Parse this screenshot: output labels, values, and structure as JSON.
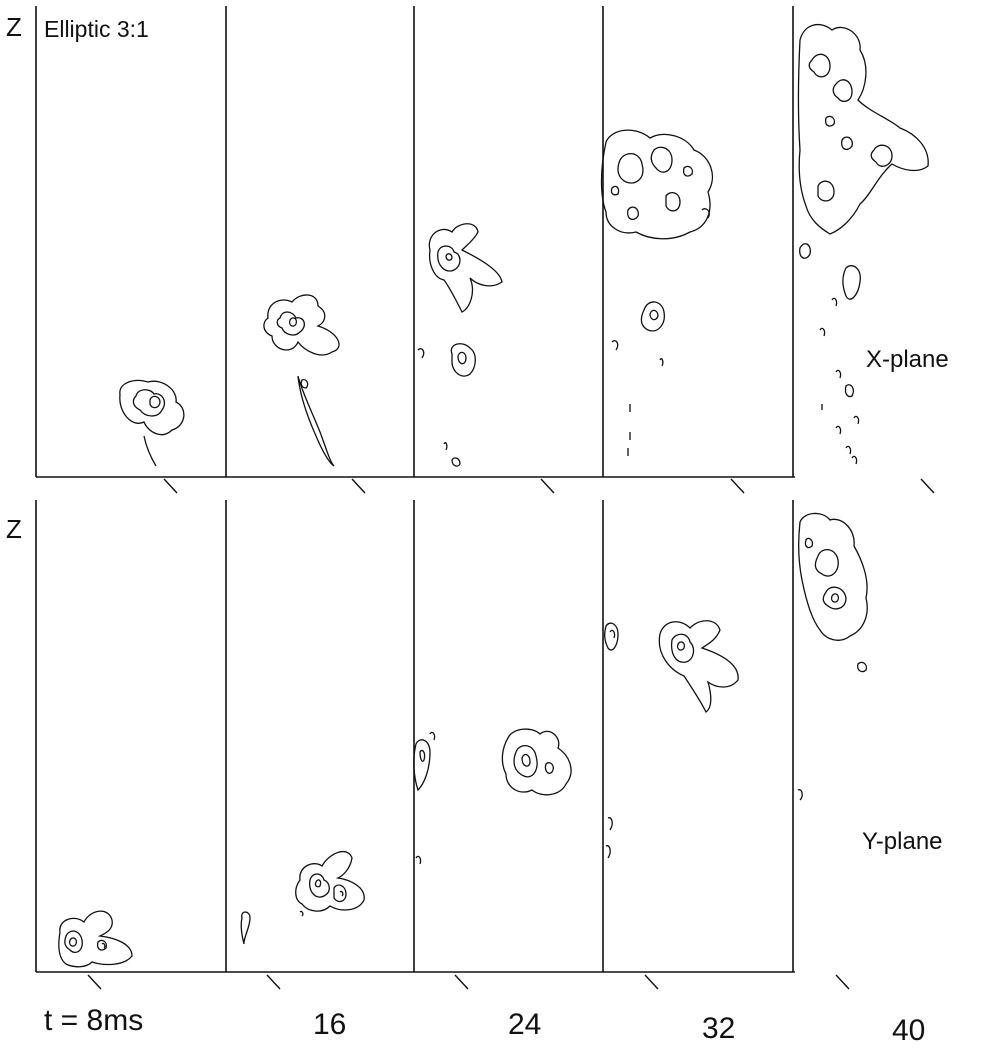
{
  "figure": {
    "title": "Elliptic 3:1",
    "z_label": "Z",
    "rows": [
      {
        "id": "x",
        "plane_label": "X-plane"
      },
      {
        "id": "y",
        "plane_label": "Y-plane"
      }
    ],
    "time_labels": [
      "t = 8ms",
      "16",
      "24",
      "32",
      "40"
    ],
    "line_color": "#111111"
  }
}
